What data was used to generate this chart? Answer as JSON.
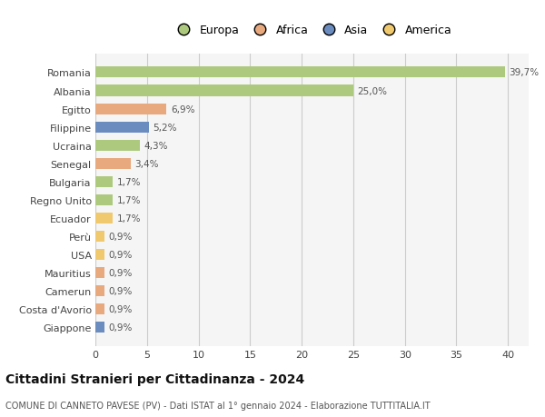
{
  "countries": [
    "Romania",
    "Albania",
    "Egitto",
    "Filippine",
    "Ucraina",
    "Senegal",
    "Bulgaria",
    "Regno Unito",
    "Ecuador",
    "Perù",
    "USA",
    "Mauritius",
    "Camerun",
    "Costa d'Avorio",
    "Giappone"
  ],
  "values": [
    39.7,
    25.0,
    6.9,
    5.2,
    4.3,
    3.4,
    1.7,
    1.7,
    1.7,
    0.9,
    0.9,
    0.9,
    0.9,
    0.9,
    0.9
  ],
  "labels": [
    "39,7%",
    "25,0%",
    "6,9%",
    "5,2%",
    "4,3%",
    "3,4%",
    "1,7%",
    "1,7%",
    "1,7%",
    "0,9%",
    "0,9%",
    "0,9%",
    "0,9%",
    "0,9%",
    "0,9%"
  ],
  "colors": [
    "#adc97e",
    "#adc97e",
    "#e8a97e",
    "#6b8cbf",
    "#adc97e",
    "#e8a97e",
    "#adc97e",
    "#adc97e",
    "#f0c96e",
    "#f0c96e",
    "#f0c96e",
    "#e8a97e",
    "#e8a97e",
    "#e8a97e",
    "#6b8cbf"
  ],
  "continent_colors": {
    "Europa": "#adc97e",
    "Africa": "#e8a97e",
    "Asia": "#6b8cbf",
    "America": "#f0c96e"
  },
  "title": "Cittadini Stranieri per Cittadinanza - 2024",
  "subtitle": "COMUNE DI CANNETO PAVESE (PV) - Dati ISTAT al 1° gennaio 2024 - Elaborazione TUTTITALIA.IT",
  "xlim": [
    0,
    42
  ],
  "xticks": [
    0,
    5,
    10,
    15,
    20,
    25,
    30,
    35,
    40
  ],
  "bg_color": "#ffffff",
  "plot_bg_color": "#f5f5f5",
  "grid_color": "#cccccc",
  "bar_height": 0.6,
  "label_fontsize": 7.5,
  "title_fontsize": 10,
  "subtitle_fontsize": 7,
  "tick_fontsize": 8,
  "legend_fontsize": 9
}
